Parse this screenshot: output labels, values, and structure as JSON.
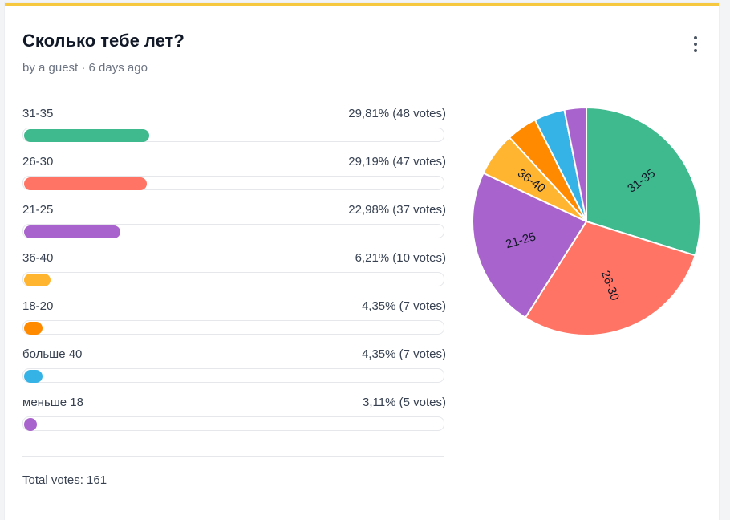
{
  "poll": {
    "title": "Сколько тебе лет?",
    "meta": "by a guest · 6 days ago",
    "total_label": "Total votes: 161",
    "accent_color": "#f6c840",
    "options": [
      {
        "label": "31-35",
        "stat": "29,81% (48 votes)",
        "percent": 29.81,
        "votes": 48,
        "color": "#3fb98e",
        "pie_label": "31-35"
      },
      {
        "label": "26-30",
        "stat": "29,19% (47 votes)",
        "percent": 29.19,
        "votes": 47,
        "color": "#ff7464",
        "pie_label": "26-30"
      },
      {
        "label": "21-25",
        "stat": "22,98% (37 votes)",
        "percent": 22.98,
        "votes": 37,
        "color": "#a963cc",
        "pie_label": "21-25"
      },
      {
        "label": "36-40",
        "stat": "6,21% (10 votes)",
        "percent": 6.21,
        "votes": 10,
        "color": "#ffb52f",
        "pie_label": "36-40"
      },
      {
        "label": "18-20",
        "stat": "4,35% (7 votes)",
        "percent": 4.35,
        "votes": 7,
        "color": "#ff8a00",
        "pie_label": ""
      },
      {
        "label": "больше 40",
        "stat": "4,35% (7 votes)",
        "percent": 4.35,
        "votes": 7,
        "color": "#36b3e6",
        "pie_label": ""
      },
      {
        "label": "меньше 18",
        "stat": "3,11% (5 votes)",
        "percent": 3.11,
        "votes": 5,
        "color": "#a963cc",
        "pie_label": ""
      }
    ]
  },
  "icons": {
    "menu": "more-vertical-icon"
  },
  "chart_data": {
    "type": "pie",
    "categories": [
      "31-35",
      "26-30",
      "21-25",
      "36-40",
      "18-20",
      "больше 40",
      "меньше 18"
    ],
    "values": [
      48,
      47,
      37,
      10,
      7,
      7,
      5
    ],
    "colors": [
      "#3fb98e",
      "#ff7464",
      "#a963cc",
      "#ffb52f",
      "#ff8a00",
      "#36b3e6",
      "#a963cc"
    ]
  }
}
